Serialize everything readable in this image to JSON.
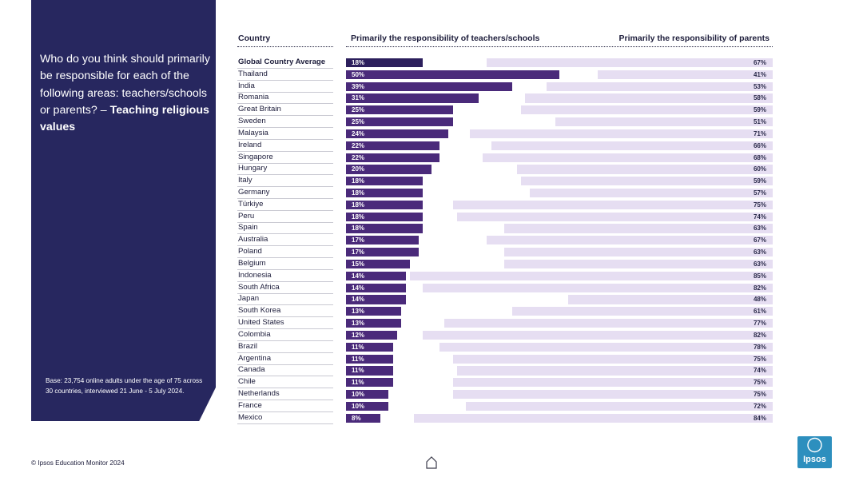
{
  "question": {
    "text": "Who do you think should primarily be responsible for each of the following areas: teachers/schools or parents?",
    "dash": "–",
    "emphasis": "Teaching religious values"
  },
  "base_note": "Base: 23,754 online adults under the age of 75 across 30 countries, interviewed 21 June - 5 July 2024.",
  "footer": "© Ipsos Education Monitor 2024",
  "logo_text": "Ipsos",
  "colors": {
    "panel": "#27275f",
    "teachers_bar": "#4a2a7a",
    "parents_bar": "#e6def2",
    "logo": "#2d8fbe"
  },
  "chart_data": {
    "type": "bar",
    "title": "Teaching religious values",
    "headers": {
      "country": "Country",
      "teachers": "Primarily the responsibility of teachers/schools",
      "parents": "Primarily the responsibility of parents"
    },
    "categories": [
      "Global Country Average",
      "Thailand",
      "India",
      "Romania",
      "Great Britain",
      "Sweden",
      "Malaysia",
      "Ireland",
      "Singapore",
      "Hungary",
      "Italy",
      "Germany",
      "Türkiye",
      "Peru",
      "Spain",
      "Australia",
      "Poland",
      "Belgium",
      "Indonesia",
      "South Africa",
      "Japan",
      "South Korea",
      "United States",
      "Colombia",
      "Brazil",
      "Argentina",
      "Canada",
      "Chile",
      "Netherlands",
      "France",
      "Mexico"
    ],
    "series": [
      {
        "name": "Primarily the responsibility of teachers/schools",
        "values": [
          18,
          50,
          39,
          31,
          25,
          25,
          24,
          22,
          22,
          20,
          18,
          18,
          18,
          18,
          18,
          17,
          17,
          15,
          14,
          14,
          14,
          13,
          13,
          12,
          11,
          11,
          11,
          11,
          10,
          10,
          8
        ]
      },
      {
        "name": "Primarily the responsibility of parents",
        "values": [
          67,
          41,
          53,
          58,
          59,
          51,
          71,
          66,
          68,
          60,
          59,
          57,
          75,
          74,
          63,
          67,
          63,
          63,
          85,
          82,
          48,
          61,
          77,
          82,
          78,
          75,
          74,
          75,
          75,
          72,
          84
        ]
      }
    ],
    "value_labels": {
      "teachers": [
        "18%",
        "50%",
        "39%",
        "31%",
        "25%",
        "25%",
        "24%",
        "22%",
        "22%",
        "20%",
        "18%",
        "18%",
        "18%",
        "18%",
        "18%",
        "17%",
        "17%",
        "15%",
        "14%",
        "14%",
        "14%",
        "13%",
        "13%",
        "12%",
        "11%",
        "11%",
        "11%",
        "11%",
        "10%",
        "10%",
        "8%"
      ],
      "parents": [
        "67%",
        "41%",
        "53%",
        "58%",
        "59%",
        "51%",
        "71%",
        "66%",
        "68%",
        "60%",
        "59%",
        "57%",
        "75%",
        "74%",
        "63%",
        "67%",
        "63%",
        "63%",
        "85%",
        "82%",
        "48%",
        "61%",
        "77%",
        "82%",
        "78%",
        "75%",
        "74%",
        "75%",
        "75%",
        "72%",
        "84%"
      ]
    },
    "unit": "%",
    "xlim": [
      0,
      100
    ]
  }
}
